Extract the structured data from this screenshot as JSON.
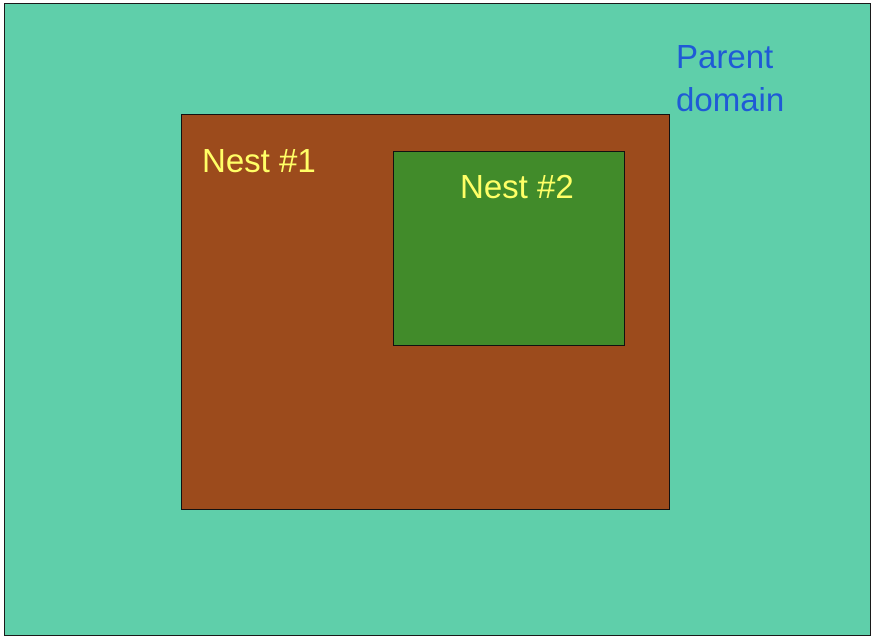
{
  "diagram": {
    "parent": {
      "label_lines": [
        "Parent",
        "domain"
      ],
      "fill_color": "#5fcfaa",
      "text_color": "#1f5ad6"
    },
    "nest1": {
      "label": "Nest #1",
      "fill_color": "#9c4b1c",
      "text_color": "#ffff66"
    },
    "nest2": {
      "label": "Nest #2",
      "fill_color": "#418b2a",
      "text_color": "#ffff66"
    }
  }
}
